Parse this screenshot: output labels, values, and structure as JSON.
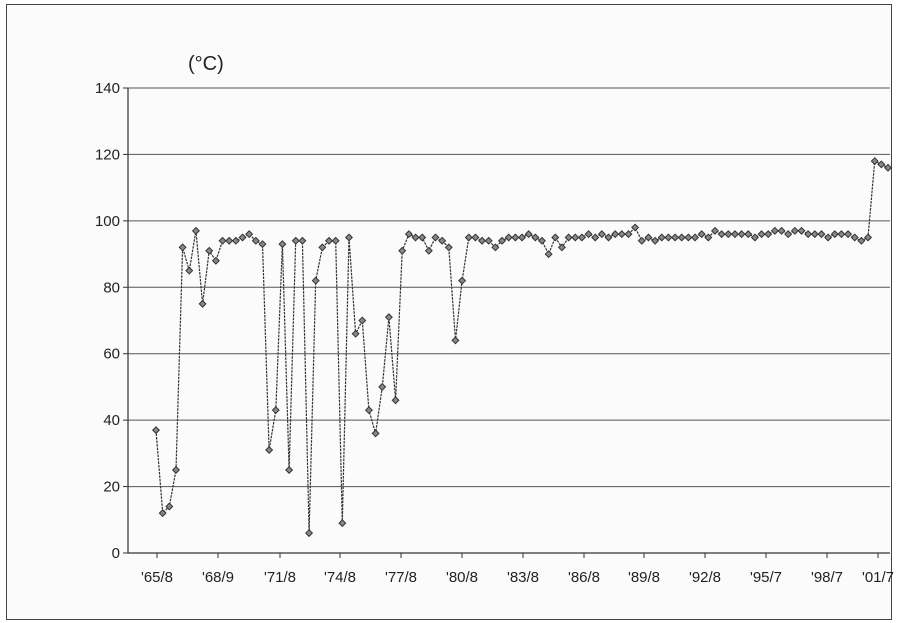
{
  "chart_data": {
    "type": "line",
    "title": "",
    "xlabel": "",
    "ylabel": "(°C)",
    "ylim": [
      0,
      140
    ],
    "y_ticks": [
      0,
      20,
      40,
      60,
      80,
      100,
      120,
      140
    ],
    "x_tick_labels": [
      "'65/8",
      "'68/9",
      "'71/8",
      "'74/8",
      "'77/8",
      "'80/8",
      "'83/8",
      "'86/8",
      "'89/8",
      "'92/8",
      "'95/7",
      "'98/7",
      "'01/7"
    ],
    "grid": "horizontal",
    "legend": "none",
    "series": [
      {
        "marker": "diamond",
        "color": "#333333",
        "values": [
          37,
          12,
          14,
          25,
          92,
          85,
          97,
          75,
          91,
          88,
          94,
          94,
          94,
          95,
          96,
          94,
          93,
          31,
          43,
          93,
          25,
          94,
          94,
          6,
          82,
          92,
          94,
          94,
          9,
          95,
          66,
          70,
          43,
          36,
          50,
          71,
          46,
          91,
          96,
          95,
          95,
          91,
          95,
          94,
          92,
          64,
          82,
          95,
          95,
          94,
          94,
          92,
          94,
          95,
          95,
          95,
          96,
          95,
          94,
          90,
          95,
          92,
          95,
          95,
          95,
          96,
          95,
          96,
          95,
          96,
          96,
          96,
          98,
          94,
          95,
          94,
          95,
          95,
          95,
          95,
          95,
          95,
          96,
          95,
          97,
          96,
          96,
          96,
          96,
          96,
          95,
          96,
          96,
          97,
          97,
          96,
          97,
          97,
          96,
          96,
          96,
          95,
          96,
          96,
          96,
          95,
          94,
          95,
          118,
          117,
          116
        ]
      }
    ]
  }
}
